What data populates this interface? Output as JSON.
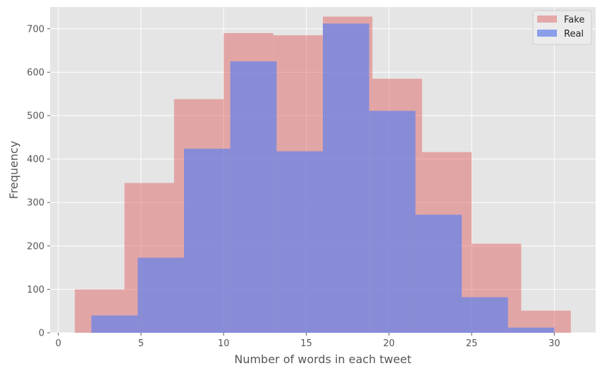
{
  "chart_data": {
    "type": "histogram",
    "title": "",
    "xlabel": "Number of words in each tweet",
    "ylabel": "Frequency",
    "xlim": [
      -0.5,
      32.5
    ],
    "ylim": [
      0,
      750
    ],
    "xticks": [
      0,
      5,
      10,
      15,
      20,
      25,
      30
    ],
    "yticks": [
      0,
      100,
      200,
      300,
      400,
      500,
      600,
      700
    ],
    "xtick_labels": [
      "0",
      "5",
      "10",
      "15",
      "20",
      "25",
      "30"
    ],
    "ytick_labels": [
      "0",
      "100",
      "200",
      "300",
      "400",
      "500",
      "600",
      "700"
    ],
    "grid": true,
    "legend_position": "top-right",
    "series": [
      {
        "name": "Fake",
        "color": "#e06666",
        "alpha": 0.5,
        "bin_edges": [
          1,
          4,
          7,
          10,
          13,
          16,
          19,
          22,
          25,
          28,
          31
        ],
        "values": [
          100,
          345,
          538,
          690,
          685,
          728,
          585,
          416,
          205,
          51
        ]
      },
      {
        "name": "Real",
        "color": "#6a84e8",
        "alpha": 0.75,
        "bin_edges": [
          2,
          4.8,
          7.6,
          10.4,
          13.2,
          16,
          18.8,
          21.6,
          24.4,
          27.2,
          30
        ],
        "values": [
          40,
          173,
          424,
          625,
          418,
          712,
          511,
          272,
          82,
          12
        ]
      }
    ]
  }
}
